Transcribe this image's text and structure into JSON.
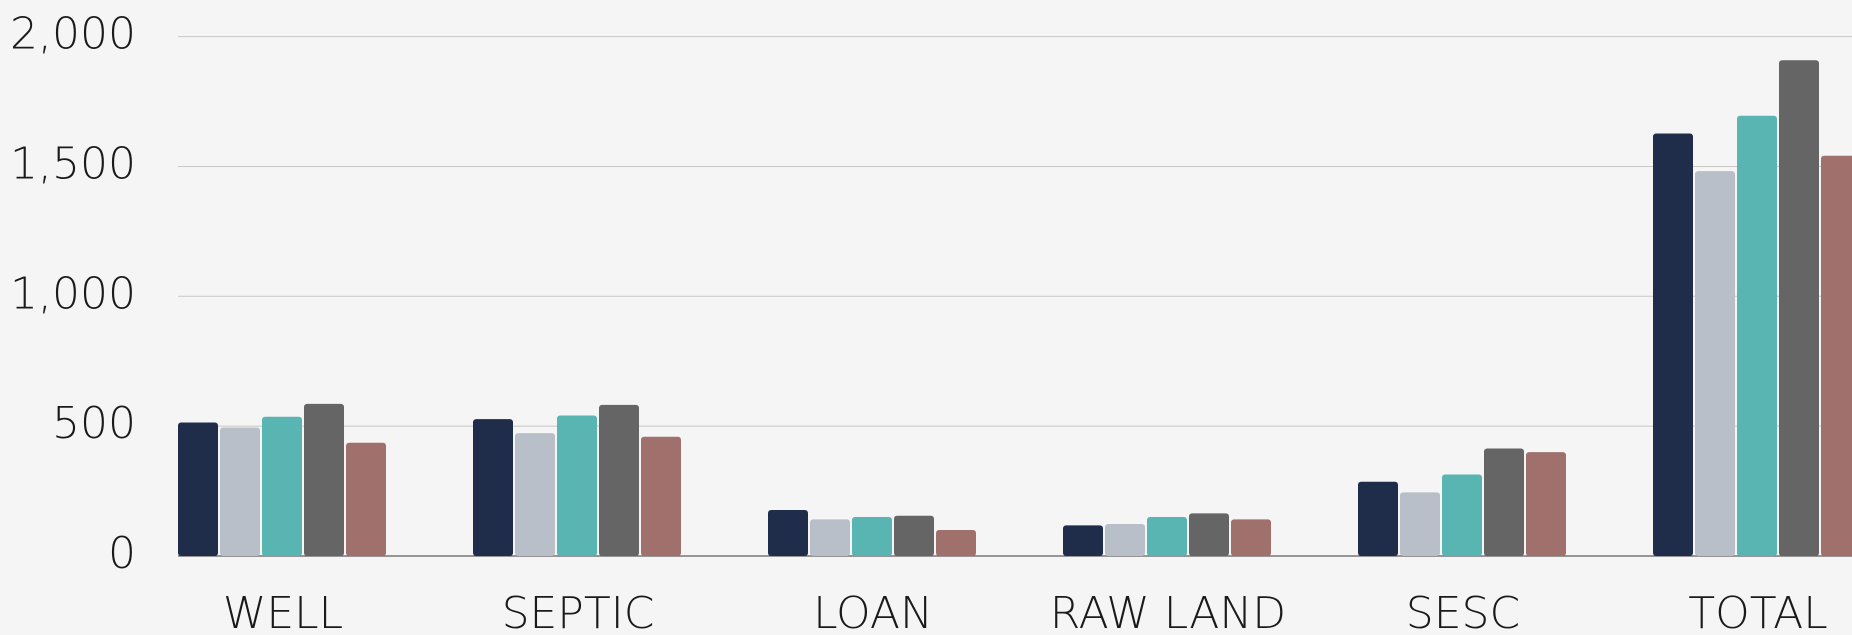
{
  "chart_data": {
    "type": "bar",
    "categories": [
      "WELL",
      "SEPTIC",
      "LOAN",
      "RAW LAND",
      "SESC",
      "TOTAL"
    ],
    "series": [
      {
        "color": "#1f2d4a",
        "values": [
          514,
          527,
          177,
          118,
          286,
          1627
        ]
      },
      {
        "color": "#b8bfc8",
        "values": [
          495,
          473,
          141,
          123,
          245,
          1482
        ]
      },
      {
        "color": "#58b5b2",
        "values": [
          536,
          541,
          150,
          150,
          314,
          1695
        ]
      },
      {
        "color": "#656565",
        "values": [
          586,
          582,
          155,
          164,
          414,
          1909
        ]
      },
      {
        "color": "#a0706d",
        "values": [
          436,
          459,
          100,
          141,
          400,
          1541
        ]
      }
    ],
    "ylim": [
      0,
      2000
    ],
    "yticks": [
      0,
      500,
      {
        "value": 1000,
        "label": "1,000"
      },
      {
        "value": 1500,
        "label": "1,500"
      },
      {
        "value": 2000,
        "label": "2,000"
      }
    ],
    "grid": true
  }
}
